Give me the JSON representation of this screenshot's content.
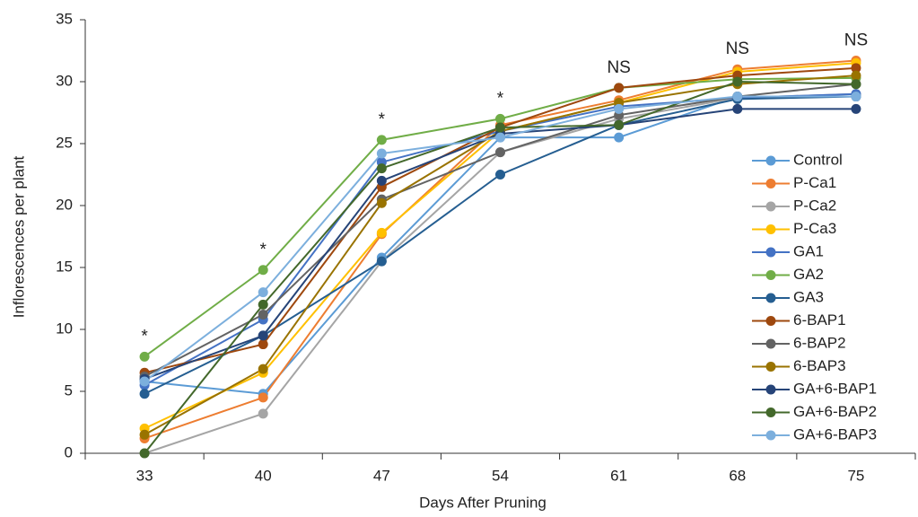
{
  "chart_data": {
    "type": "line",
    "x_label": "Days After Pruning",
    "y_label": "Inflorescences per plant",
    "categories": [
      "33",
      "40",
      "47",
      "54",
      "61",
      "68",
      "75"
    ],
    "annotations": [
      "*",
      "*",
      "*",
      "*",
      "NS",
      "NS",
      "NS"
    ],
    "ylim": [
      0,
      35
    ],
    "yticks": [
      0,
      5,
      10,
      15,
      20,
      25,
      30,
      35
    ],
    "grid": false,
    "legend": "right",
    "series": [
      {
        "name": "Control",
        "color": "#5B9BD5",
        "values": [
          5.8,
          4.8,
          15.8,
          25.5,
          25.5,
          28.8,
          28.8
        ]
      },
      {
        "name": "P-Ca1",
        "color": "#ED7D31",
        "values": [
          1.2,
          4.5,
          17.7,
          26.5,
          28.5,
          31.0,
          31.7
        ]
      },
      {
        "name": "P-Ca2",
        "color": "#A5A5A5",
        "values": [
          0,
          3.2,
          15.5,
          24.3,
          27.0,
          28.7,
          29.0
        ]
      },
      {
        "name": "P-Ca3",
        "color": "#FFC000",
        "values": [
          2.0,
          6.5,
          17.8,
          26.0,
          28.3,
          30.8,
          31.5
        ]
      },
      {
        "name": "GA1",
        "color": "#4472C4",
        "values": [
          5.5,
          10.8,
          23.5,
          26.0,
          28.0,
          28.7,
          29.0
        ]
      },
      {
        "name": "GA2",
        "color": "#70AD47",
        "values": [
          7.8,
          14.8,
          25.3,
          27.0,
          29.5,
          30.2,
          30.3
        ]
      },
      {
        "name": "GA3",
        "color": "#255E91",
        "values": [
          4.8,
          9.5,
          15.5,
          22.5,
          26.5,
          28.6,
          28.8
        ]
      },
      {
        "name": "6-BAP1",
        "color": "#9E480E",
        "values": [
          6.5,
          8.8,
          21.5,
          26.3,
          29.5,
          30.5,
          31.1
        ]
      },
      {
        "name": "6-BAP2",
        "color": "#636363",
        "values": [
          6.2,
          11.2,
          20.5,
          24.3,
          27.3,
          28.8,
          29.8
        ]
      },
      {
        "name": "6-BAP3",
        "color": "#997300",
        "values": [
          1.5,
          6.8,
          20.2,
          26.0,
          28.3,
          29.8,
          30.5
        ]
      },
      {
        "name": "GA+6-BAP1",
        "color": "#264478",
        "values": [
          6.0,
          9.5,
          22.0,
          25.8,
          26.5,
          27.8,
          27.8
        ]
      },
      {
        "name": "GA+6-BAP2",
        "color": "#43682B",
        "values": [
          0,
          12.0,
          23.0,
          26.3,
          26.5,
          30.0,
          29.8
        ]
      },
      {
        "name": "GA+6-BAP3",
        "color": "#7CAFDD",
        "values": [
          5.8,
          13.0,
          24.2,
          25.5,
          27.8,
          28.8,
          28.8
        ]
      }
    ]
  }
}
